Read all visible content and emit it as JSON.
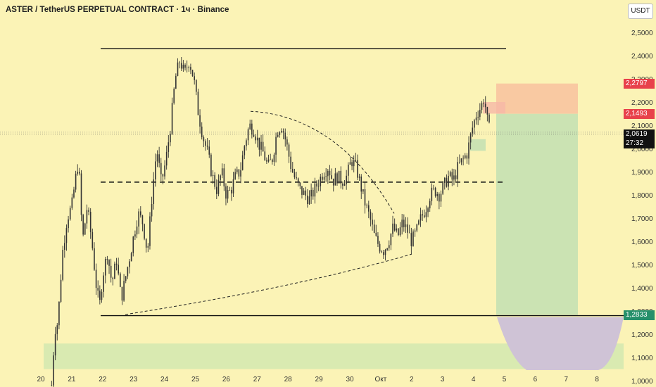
{
  "title": "ASTER / TetherUS PERPETUAL CONTRACT · 1ч · Binance",
  "currency_button": "USDT",
  "colors": {
    "background": "#fbf3b6",
    "candle": "#333333",
    "target_zone": "#cbe3b3",
    "stop_zone": "#f8c4a0",
    "support_zone": "#d9eab1",
    "purple_zone": "#cfc3d6",
    "red_tag": "#e8414b",
    "green_tag": "#26906b",
    "dark_tag": "#111111"
  },
  "price_tags": {
    "stop": "2,2797",
    "entry": "2,1493",
    "current": "2,0619",
    "countdown": "27:32",
    "target": "1,2833"
  },
  "chart_data": {
    "type": "candlestick",
    "title": "ASTER / TetherUS PERPETUAL CONTRACT · 1ч · Binance",
    "y_axis": {
      "min": 0.94,
      "max": 2.6,
      "ticks": [
        "2,5000",
        "2,4000",
        "2,3000",
        "2,2000",
        "2,1000",
        "2,0000",
        "1,9000",
        "1,8000",
        "1,7000",
        "1,6000",
        "1,5000",
        "1,4000",
        "1,3000",
        "1,2000",
        "1,1000",
        "1,0000"
      ],
      "tick_values": [
        2.5,
        2.4,
        2.3,
        2.2,
        2.1,
        2.0,
        1.9,
        1.8,
        1.7,
        1.6,
        1.5,
        1.4,
        1.3,
        1.2,
        1.1,
        1.0
      ]
    },
    "x_axis": {
      "labels": [
        "20",
        "21",
        "22",
        "23",
        "24",
        "25",
        "26",
        "27",
        "28",
        "29",
        "30",
        "Окт",
        "2",
        "3",
        "4",
        "5",
        "6",
        "7",
        "8"
      ],
      "day_index": [
        0,
        1,
        2,
        3,
        4,
        5,
        6,
        7,
        8,
        9,
        10,
        11,
        12,
        13,
        14,
        15,
        16,
        17,
        18
      ]
    },
    "price_path": [
      [
        0.35,
        0.98
      ],
      [
        0.45,
        1.22
      ],
      [
        0.55,
        1.25
      ],
      [
        0.7,
        1.55
      ],
      [
        0.85,
        1.7
      ],
      [
        1.0,
        1.75
      ],
      [
        1.1,
        1.85
      ],
      [
        1.22,
        1.95
      ],
      [
        1.35,
        1.6
      ],
      [
        1.5,
        1.75
      ],
      [
        1.65,
        1.6
      ],
      [
        1.8,
        1.4
      ],
      [
        1.9,
        1.32
      ],
      [
        2.0,
        1.45
      ],
      [
        2.15,
        1.55
      ],
      [
        2.3,
        1.42
      ],
      [
        2.45,
        1.52
      ],
      [
        2.6,
        1.35
      ],
      [
        2.75,
        1.45
      ],
      [
        2.9,
        1.55
      ],
      [
        3.0,
        1.62
      ],
      [
        3.15,
        1.72
      ],
      [
        3.3,
        1.68
      ],
      [
        3.45,
        1.55
      ],
      [
        3.6,
        1.8
      ],
      [
        3.75,
        2.0
      ],
      [
        3.9,
        1.85
      ],
      [
        4.05,
        1.95
      ],
      [
        4.2,
        2.1
      ],
      [
        4.35,
        2.3
      ],
      [
        4.5,
        2.38
      ],
      [
        4.65,
        2.32
      ],
      [
        4.8,
        2.38
      ],
      [
        4.95,
        2.3
      ],
      [
        5.1,
        2.15
      ],
      [
        5.25,
        2.05
      ],
      [
        5.4,
        1.98
      ],
      [
        5.55,
        1.88
      ],
      [
        5.7,
        1.82
      ],
      [
        5.85,
        1.9
      ],
      [
        6.0,
        1.8
      ],
      [
        6.15,
        1.82
      ],
      [
        6.3,
        1.88
      ],
      [
        6.45,
        1.9
      ],
      [
        6.6,
        2.02
      ],
      [
        6.75,
        2.1
      ],
      [
        6.9,
        2.08
      ],
      [
        7.05,
        2.02
      ],
      [
        7.2,
        1.98
      ],
      [
        7.35,
        1.92
      ],
      [
        7.5,
        1.96
      ],
      [
        7.65,
        2.08
      ],
      [
        7.8,
        2.1
      ],
      [
        7.95,
        2.02
      ],
      [
        8.1,
        1.92
      ],
      [
        8.25,
        1.86
      ],
      [
        8.4,
        1.82
      ],
      [
        8.55,
        1.8
      ],
      [
        8.7,
        1.78
      ],
      [
        8.85,
        1.82
      ],
      [
        9.0,
        1.86
      ],
      [
        9.15,
        1.9
      ],
      [
        9.3,
        1.92
      ],
      [
        9.45,
        1.86
      ],
      [
        9.6,
        1.88
      ],
      [
        9.75,
        1.86
      ],
      [
        9.9,
        1.88
      ],
      [
        10.05,
        1.95
      ],
      [
        10.2,
        1.92
      ],
      [
        10.35,
        1.84
      ],
      [
        10.5,
        1.76
      ],
      [
        10.65,
        1.7
      ],
      [
        10.8,
        1.62
      ],
      [
        10.95,
        1.58
      ],
      [
        11.1,
        1.56
      ],
      [
        11.25,
        1.6
      ],
      [
        11.4,
        1.66
      ],
      [
        11.55,
        1.62
      ],
      [
        11.7,
        1.68
      ],
      [
        11.85,
        1.65
      ],
      [
        12.0,
        1.6
      ],
      [
        12.15,
        1.64
      ],
      [
        12.3,
        1.7
      ],
      [
        12.45,
        1.74
      ],
      [
        12.6,
        1.8
      ],
      [
        12.75,
        1.82
      ],
      [
        12.9,
        1.8
      ],
      [
        13.05,
        1.84
      ],
      [
        13.2,
        1.88
      ],
      [
        13.35,
        1.86
      ],
      [
        13.5,
        1.92
      ],
      [
        13.65,
        1.95
      ],
      [
        13.8,
        1.98
      ],
      [
        13.95,
        2.08
      ],
      [
        14.1,
        2.15
      ],
      [
        14.25,
        2.18
      ],
      [
        14.35,
        2.22
      ],
      [
        14.45,
        2.12
      ],
      [
        14.55,
        2.06
      ]
    ],
    "levels": {
      "resistance_top": 2.43,
      "mid_dashed": 1.855,
      "support_bottom": 1.28
    },
    "zones": {
      "stop_zone": [
        2.1493,
        2.2797
      ],
      "target_zone": [
        1.2833,
        2.1493
      ],
      "support_band": [
        1.05,
        1.16
      ]
    }
  }
}
